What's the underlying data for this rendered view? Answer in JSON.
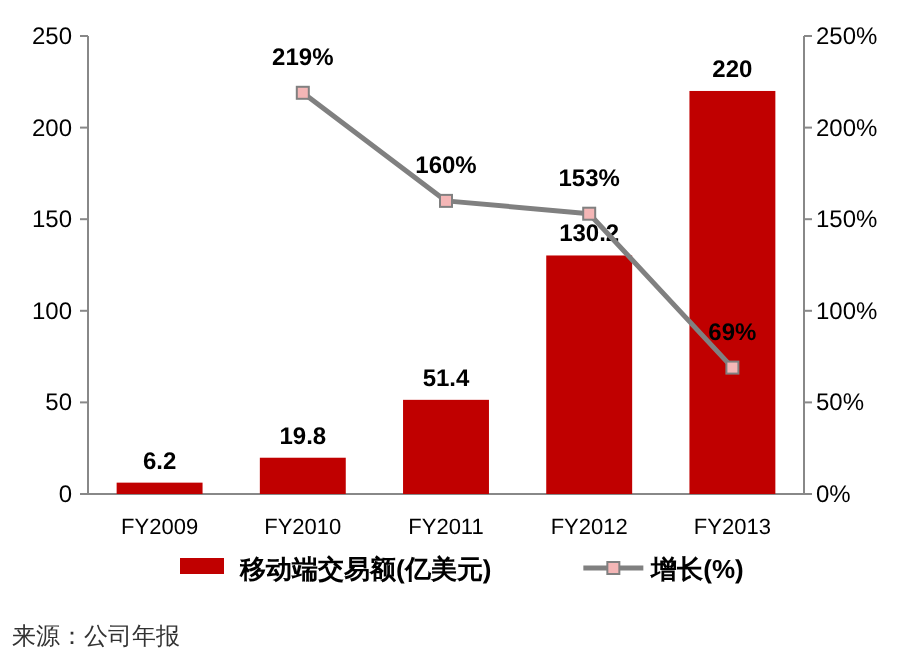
{
  "chart_data": {
    "type": "bar",
    "categories": [
      "FY2009",
      "FY2010",
      "FY2011",
      "FY2012",
      "FY2013"
    ],
    "series": [
      {
        "name": "移动端交易额(亿美元)",
        "color": "#c00000",
        "values": [
          6.2,
          19.8,
          51.4,
          130.2,
          220
        ]
      },
      {
        "name": "增长(%)",
        "type": "line",
        "axis": "y2",
        "color": "#808080",
        "values": [
          null,
          219,
          160,
          153,
          69
        ],
        "value_labels": [
          null,
          "219%",
          "160%",
          "153%",
          "69%"
        ]
      }
    ],
    "data_labels": true,
    "marker": "square",
    "legend": "bottom",
    "grid": false,
    "ylim": [
      0,
      250
    ],
    "yticks": [
      0,
      50,
      100,
      150,
      200,
      250
    ],
    "y2lim": [
      0,
      250
    ],
    "y2ticks": [
      {
        "value": 0,
        "label": "0%"
      },
      {
        "value": 50,
        "label": "50%"
      },
      {
        "value": 100,
        "label": "100%"
      },
      {
        "value": 150,
        "label": "150%"
      },
      {
        "value": 200,
        "label": "200%"
      },
      {
        "value": 250,
        "label": "250%"
      }
    ],
    "annotations": [
      "来源：公司年报"
    ]
  }
}
